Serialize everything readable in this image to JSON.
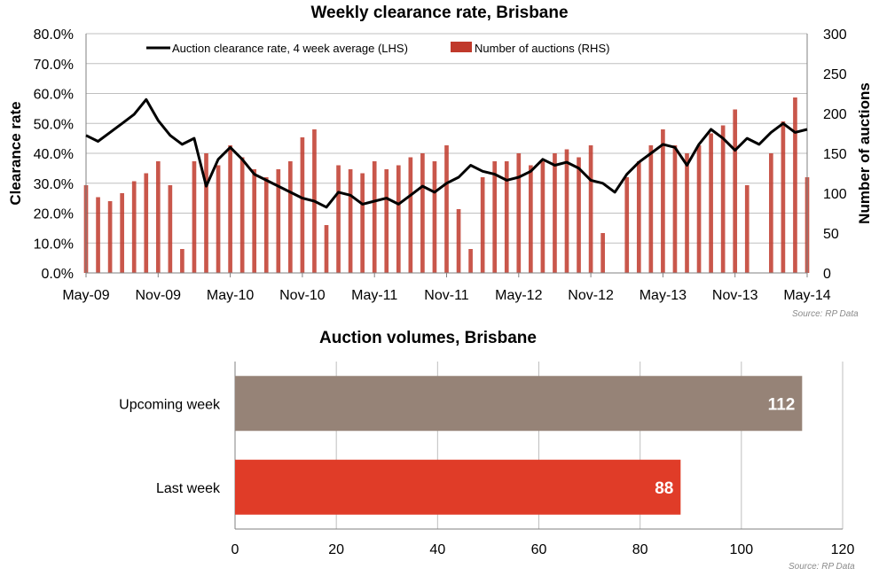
{
  "chart_data": [
    {
      "type": "line",
      "title": "Weekly clearance rate, Brisbane",
      "ylabel": "Clearance rate",
      "y2label": "Number of auctions",
      "ylim": [
        0,
        80
      ],
      "y2lim": [
        0,
        300
      ],
      "y_ticks": [
        "0.0%",
        "10.0%",
        "20.0%",
        "30.0%",
        "40.0%",
        "50.0%",
        "60.0%",
        "70.0%",
        "80.0%"
      ],
      "y2_ticks": [
        "0",
        "50",
        "100",
        "150",
        "200",
        "250",
        "300"
      ],
      "x_ticks": [
        "May-09",
        "Nov-09",
        "May-10",
        "Nov-10",
        "May-11",
        "Nov-11",
        "May-12",
        "Nov-12",
        "May-13",
        "Nov-13",
        "May-14"
      ],
      "grid": true,
      "legend_position": "top",
      "source": "Source: RP Data",
      "series": [
        {
          "name": "Auction clearance rate, 4 week average (LHS)",
          "axis": "left",
          "kind": "line",
          "color": "#000000",
          "x": [
            "May-09",
            "Jun-09",
            "Jul-09",
            "Aug-09",
            "Sep-09",
            "Oct-09",
            "Nov-09",
            "Dec-09",
            "Jan-10",
            "Feb-10",
            "Mar-10",
            "Apr-10",
            "May-10",
            "Jun-10",
            "Jul-10",
            "Aug-10",
            "Sep-10",
            "Oct-10",
            "Nov-10",
            "Dec-10",
            "Jan-11",
            "Feb-11",
            "Mar-11",
            "Apr-11",
            "May-11",
            "Jun-11",
            "Jul-11",
            "Aug-11",
            "Sep-11",
            "Oct-11",
            "Nov-11",
            "Dec-11",
            "Jan-12",
            "Feb-12",
            "Mar-12",
            "Apr-12",
            "May-12",
            "Jun-12",
            "Jul-12",
            "Aug-12",
            "Sep-12",
            "Oct-12",
            "Nov-12",
            "Dec-12",
            "Jan-13",
            "Feb-13",
            "Mar-13",
            "Apr-13",
            "May-13",
            "Jun-13",
            "Jul-13",
            "Aug-13",
            "Sep-13",
            "Oct-13",
            "Nov-13",
            "Dec-13",
            "Jan-14",
            "Feb-14",
            "Mar-14",
            "Apr-14",
            "May-14"
          ],
          "values": [
            46,
            44,
            47,
            50,
            53,
            58,
            51,
            46,
            43,
            45,
            29,
            38,
            42,
            38,
            33,
            31,
            29,
            27,
            25,
            24,
            22,
            27,
            26,
            23,
            24,
            25,
            23,
            26,
            29,
            27,
            30,
            32,
            36,
            34,
            33,
            31,
            32,
            34,
            38,
            36,
            37,
            35,
            31,
            30,
            27,
            33,
            37,
            40,
            43,
            42,
            36,
            43,
            48,
            45,
            41,
            45,
            43,
            47,
            50,
            47,
            48
          ]
        },
        {
          "name": "Number of auctions (RHS)",
          "axis": "right",
          "kind": "bar",
          "color": "#c0392b",
          "x": [
            "May-09",
            "Jun-09",
            "Jul-09",
            "Aug-09",
            "Sep-09",
            "Oct-09",
            "Nov-09",
            "Dec-09",
            "Jan-10",
            "Feb-10",
            "Mar-10",
            "Apr-10",
            "May-10",
            "Jun-10",
            "Jul-10",
            "Aug-10",
            "Sep-10",
            "Oct-10",
            "Nov-10",
            "Dec-10",
            "Jan-11",
            "Feb-11",
            "Mar-11",
            "Apr-11",
            "May-11",
            "Jun-11",
            "Jul-11",
            "Aug-11",
            "Sep-11",
            "Oct-11",
            "Nov-11",
            "Dec-11",
            "Jan-12",
            "Feb-12",
            "Mar-12",
            "Apr-12",
            "May-12",
            "Jun-12",
            "Jul-12",
            "Aug-12",
            "Sep-12",
            "Oct-12",
            "Nov-12",
            "Dec-12",
            "Jan-13",
            "Feb-13",
            "Mar-13",
            "Apr-13",
            "May-13",
            "Jun-13",
            "Jul-13",
            "Aug-13",
            "Sep-13",
            "Oct-13",
            "Nov-13",
            "Dec-13",
            "Jan-14",
            "Feb-14",
            "Mar-14",
            "Apr-14",
            "May-14"
          ],
          "values": [
            110,
            95,
            90,
            100,
            115,
            125,
            140,
            110,
            30,
            140,
            150,
            135,
            160,
            145,
            130,
            120,
            130,
            140,
            170,
            180,
            60,
            135,
            130,
            125,
            140,
            130,
            135,
            145,
            150,
            140,
            160,
            80,
            30,
            120,
            140,
            140,
            150,
            135,
            140,
            150,
            155,
            145,
            160,
            50,
            0,
            120,
            140,
            160,
            180,
            160,
            150,
            160,
            175,
            185,
            205,
            110,
            0,
            150,
            190,
            220,
            120
          ]
        }
      ]
    },
    {
      "type": "bar",
      "orientation": "horizontal",
      "title": "Auction volumes, Brisbane",
      "categories": [
        "Upcoming week",
        "Last week"
      ],
      "values": [
        112,
        88
      ],
      "value_labels": [
        "112",
        "88"
      ],
      "colors": [
        "#968377",
        "#e03c28"
      ],
      "xlim": [
        0,
        120
      ],
      "x_ticks": [
        "0",
        "20",
        "40",
        "60",
        "80",
        "100",
        "120"
      ],
      "grid": true,
      "source": "Source: RP Data"
    }
  ]
}
